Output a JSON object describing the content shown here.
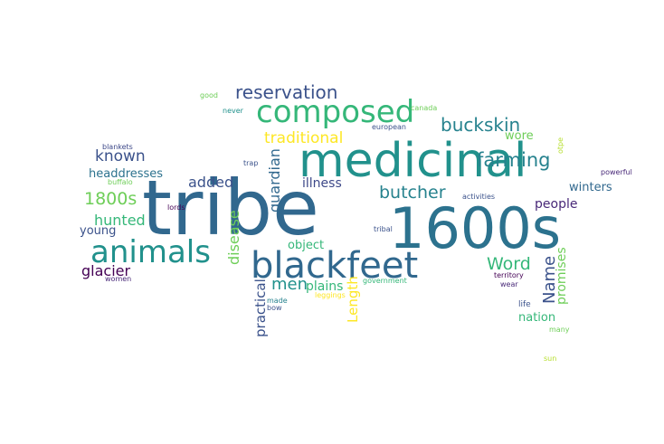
{
  "palette": {
    "dark_purple": "#440154",
    "indigo": "#3b528b",
    "blue": "#31688e",
    "teal_blue": "#26828e",
    "teal": "#21918c",
    "green_teal": "#1fa187",
    "green": "#35b779",
    "light_green": "#6ece58",
    "yellow_green": "#b5de2b",
    "yellow": "#fde725"
  },
  "words": [
    {
      "text": "tribe",
      "color": "#31688e"
    },
    {
      "text": "medicinal",
      "color": "#21918c"
    },
    {
      "text": "1600s",
      "color": "#2c728e"
    },
    {
      "text": "blackfeet",
      "color": "#31688e"
    },
    {
      "text": "animals",
      "color": "#21918c"
    },
    {
      "text": "composed",
      "color": "#35b779"
    },
    {
      "text": "reservation",
      "color": "#3b528b"
    },
    {
      "text": "buckskin",
      "color": "#26828e"
    },
    {
      "text": "farming",
      "color": "#26828e"
    },
    {
      "text": "traditional",
      "color": "#fde725"
    },
    {
      "text": "Word",
      "color": "#35b779"
    },
    {
      "text": "butcher",
      "color": "#26828e"
    },
    {
      "text": "Name",
      "color": "#3b528b"
    },
    {
      "text": "1800s",
      "color": "#6ece58"
    },
    {
      "text": "hunted",
      "color": "#35b779"
    },
    {
      "text": "known",
      "color": "#3b528b"
    },
    {
      "text": "added",
      "color": "#3b528b"
    },
    {
      "text": "guardian",
      "color": "#31688e"
    },
    {
      "text": "disease",
      "color": "#6ece58"
    },
    {
      "text": "men",
      "color": "#21918c"
    },
    {
      "text": "plains",
      "color": "#35b779"
    },
    {
      "text": "glacier",
      "color": "#440154"
    },
    {
      "text": "Length",
      "color": "#fde725"
    },
    {
      "text": "practical",
      "color": "#3b528b"
    },
    {
      "text": "promises",
      "color": "#6ece58"
    },
    {
      "text": "headdresses",
      "color": "#2c728e"
    },
    {
      "text": "illness",
      "color": "#3e4989"
    },
    {
      "text": "people",
      "color": "#482878"
    },
    {
      "text": "winters",
      "color": "#31688e"
    },
    {
      "text": "young",
      "color": "#3b528b"
    },
    {
      "text": "object",
      "color": "#35b779"
    },
    {
      "text": "wore",
      "color": "#6ece58"
    },
    {
      "text": "nation",
      "color": "#35b779"
    },
    {
      "text": "good",
      "color": "#6ece58"
    },
    {
      "text": "never",
      "color": "#21918c"
    },
    {
      "text": "canada",
      "color": "#6ece58"
    },
    {
      "text": "european",
      "color": "#3b528b"
    },
    {
      "text": "blankets",
      "color": "#3e4989"
    },
    {
      "text": "buffalo",
      "color": "#6ece58"
    },
    {
      "text": "trap",
      "color": "#3b528b"
    },
    {
      "text": "lords",
      "color": "#440154"
    },
    {
      "text": "activities",
      "color": "#3b528b"
    },
    {
      "text": "tribal",
      "color": "#3b528b"
    },
    {
      "text": "powerful",
      "color": "#482878"
    },
    {
      "text": "otpe",
      "color": "#b5de2b"
    },
    {
      "text": "women",
      "color": "#482878"
    },
    {
      "text": "made",
      "color": "#26828e"
    },
    {
      "text": "bow",
      "color": "#3b528b"
    },
    {
      "text": "leggings",
      "color": "#fde725"
    },
    {
      "text": "government",
      "color": "#35b779"
    },
    {
      "text": "territory",
      "color": "#440154"
    },
    {
      "text": "wear",
      "color": "#482878"
    },
    {
      "text": "life",
      "color": "#3b528b"
    },
    {
      "text": "many",
      "color": "#6ece58"
    },
    {
      "text": "sun",
      "color": "#b5de2b"
    }
  ]
}
